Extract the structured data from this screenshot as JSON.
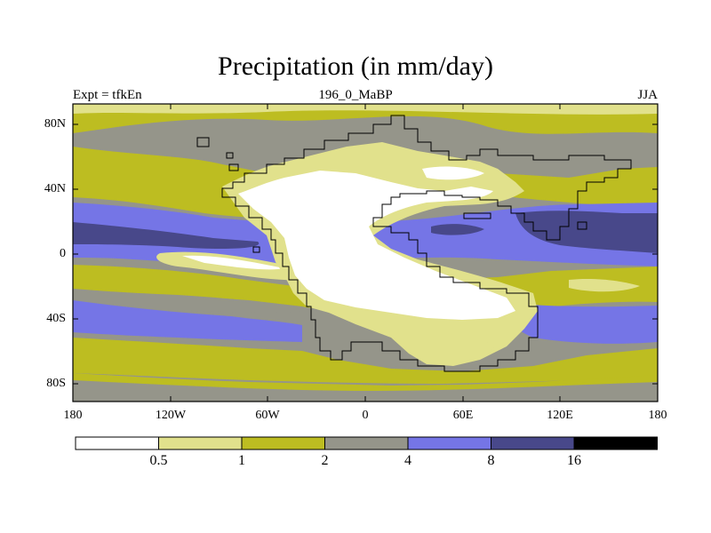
{
  "title": "Precipitation (in mm/day)",
  "subtitle": {
    "left": "Expt = tfkEn",
    "center": "196_0_MaBP",
    "right": "JJA"
  },
  "axes": {
    "lat_ticks": [
      "80N",
      "40N",
      "0",
      "40S",
      "80S"
    ],
    "lon_ticks": [
      "180",
      "120W",
      "60W",
      "0",
      "60E",
      "120E",
      "180"
    ]
  },
  "colorbar": {
    "labels": [
      "0.5",
      "1",
      "2",
      "4",
      "8",
      "16"
    ],
    "colors": [
      "#ffffff",
      "#e1e18c",
      "#bdbd21",
      "#95958a",
      "#7575e6",
      "#48488a",
      "#000000"
    ]
  },
  "colors": {
    "c0": "#ffffff",
    "c05": "#e1e18c",
    "c1": "#bdbd21",
    "c2": "#95958a",
    "c4": "#7575e6",
    "c8": "#48488a",
    "c16": "#000000"
  }
}
